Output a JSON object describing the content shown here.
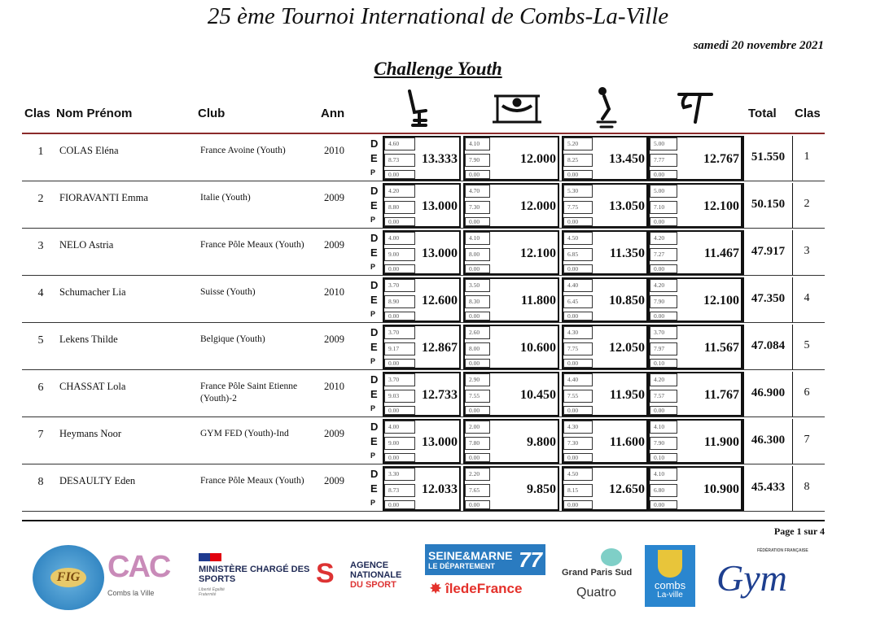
{
  "header": {
    "title": "25 ème Tournoi International  de Combs-La-Ville",
    "date": "samedi 20 novembre 2021",
    "subtitle": "Challenge Youth"
  },
  "columns": {
    "rank": "Clas",
    "name": "Nom Prénom",
    "club": "Club",
    "year": "Ann",
    "total": "Total",
    "rank2": "Clas"
  },
  "apparatus_icons": [
    "vault-icon",
    "uneven-bars-icon",
    "beam-icon",
    "floor-icon"
  ],
  "score_letters": [
    "D",
    "E",
    "P"
  ],
  "rows": [
    {
      "rank": "1",
      "name": "COLAS Eléna",
      "club": "France Avoine (Youth)",
      "year": "2010",
      "apps": [
        [
          "4.60",
          "8.73",
          "0.00",
          "13.333"
        ],
        [
          "4.10",
          "7.90",
          "0.00",
          "12.000"
        ],
        [
          "5.20",
          "8.25",
          "0.00",
          "13.450"
        ],
        [
          "5.00",
          "7.77",
          "0.00",
          "12.767"
        ]
      ],
      "total": "51.550"
    },
    {
      "rank": "2",
      "name": "FIORAVANTI Emma",
      "club": "Italie (Youth)",
      "year": "2009",
      "apps": [
        [
          "4.20",
          "8.80",
          "0.00",
          "13.000"
        ],
        [
          "4.70",
          "7.30",
          "0.00",
          "12.000"
        ],
        [
          "5.30",
          "7.75",
          "0.00",
          "13.050"
        ],
        [
          "5.00",
          "7.10",
          "0.00",
          "12.100"
        ]
      ],
      "total": "50.150"
    },
    {
      "rank": "3",
      "name": "NELO Astria",
      "club": "France Pôle Meaux (Youth)",
      "year": "2009",
      "apps": [
        [
          "4.00",
          "9.00",
          "0.00",
          "13.000"
        ],
        [
          "4.10",
          "8.00",
          "0.00",
          "12.100"
        ],
        [
          "4.50",
          "6.85",
          "0.00",
          "11.350"
        ],
        [
          "4.20",
          "7.27",
          "0.00",
          "11.467"
        ]
      ],
      "total": "47.917"
    },
    {
      "rank": "4",
      "name": "Schumacher Lia",
      "club": "Suisse (Youth)",
      "year": "2010",
      "apps": [
        [
          "3.70",
          "8.90",
          "0.00",
          "12.600"
        ],
        [
          "3.50",
          "8.30",
          "0.00",
          "11.800"
        ],
        [
          "4.40",
          "6.45",
          "0.00",
          "10.850"
        ],
        [
          "4.20",
          "7.90",
          "0.00",
          "12.100"
        ]
      ],
      "total": "47.350"
    },
    {
      "rank": "5",
      "name": "Lekens Thilde",
      "club": "Belgique (Youth)",
      "year": "2009",
      "apps": [
        [
          "3.70",
          "9.17",
          "0.00",
          "12.867"
        ],
        [
          "2.60",
          "8.00",
          "0.00",
          "10.600"
        ],
        [
          "4.30",
          "7.75",
          "0.00",
          "12.050"
        ],
        [
          "3.70",
          "7.97",
          "0.10",
          "11.567"
        ]
      ],
      "total": "47.084"
    },
    {
      "rank": "6",
      "name": "CHASSAT Lola",
      "club": "France Pôle Saint Etienne (Youth)-2",
      "year": "2010",
      "apps": [
        [
          "3.70",
          "9.03",
          "0.00",
          "12.733"
        ],
        [
          "2.90",
          "7.55",
          "0.00",
          "10.450"
        ],
        [
          "4.40",
          "7.55",
          "0.00",
          "11.950"
        ],
        [
          "4.20",
          "7.57",
          "0.00",
          "11.767"
        ]
      ],
      "total": "46.900"
    },
    {
      "rank": "7",
      "name": "Heymans Noor",
      "club": "GYM FED (Youth)-Ind",
      "year": "2009",
      "apps": [
        [
          "4.00",
          "9.00",
          "0.00",
          "13.000"
        ],
        [
          "2.00",
          "7.80",
          "0.00",
          "9.800"
        ],
        [
          "4.30",
          "7.30",
          "0.00",
          "11.600"
        ],
        [
          "4.10",
          "7.90",
          "0.10",
          "11.900"
        ]
      ],
      "total": "46.300"
    },
    {
      "rank": "8",
      "name": "DESAULTY Eden",
      "club": "France Pôle Meaux (Youth)",
      "year": "2009",
      "apps": [
        [
          "3.30",
          "8.73",
          "0.00",
          "12.033"
        ],
        [
          "2.20",
          "7.65",
          "0.00",
          "9.850"
        ],
        [
          "4.50",
          "8.15",
          "0.00",
          "12.650"
        ],
        [
          "4.10",
          "6.80",
          "0.00",
          "10.900"
        ]
      ],
      "total": "45.433"
    }
  ],
  "footer": {
    "page": "Page 1 sur 4",
    "logos": {
      "fig": "FIG",
      "cac": "CAC",
      "cac_sub": "Combs la Ville",
      "ministry": "MINISTÈRE CHARGÉ DES SPORTS",
      "ministry_motto": "Liberté Égalité Fraternité",
      "ans1": "AGENCE",
      "ans2": "NATIONALE",
      "ans3": "DU SPORT",
      "sm1": "SEINE&MARNE",
      "sm_num": "77",
      "sm2": "LE DÉPARTEMENT",
      "idf": "îledeFrance",
      "gps": "Grand Paris Sud",
      "quatro": "Quatro",
      "combs1": "combs",
      "combs2": "La-ville",
      "ffg1": "FÉDÉRATION FRANÇAISE",
      "ffg2": "Gym"
    }
  },
  "colors": {
    "header_rule": "#8b2a2a",
    "sm_blue": "#2a7bc0",
    "idf_red": "#e4312b",
    "combs_blue": "#2a86cf",
    "ffg_blue": "#1e3f8f",
    "ffg_red": "#d7262e",
    "cac_pink": "#c98bb9"
  }
}
